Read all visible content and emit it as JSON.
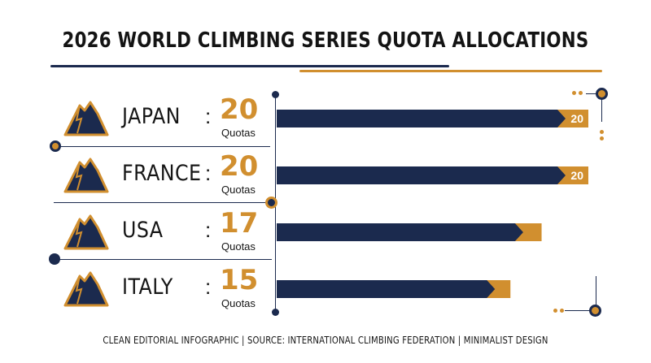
{
  "chart_data": {
    "type": "bar",
    "title": "2026 WORLD CLIMBING SERIES QUOTA ALLOCATIONS",
    "categories": [
      "JAPAN",
      "FRANCE",
      "USA",
      "ITALY"
    ],
    "values": [
      20,
      20,
      17,
      15
    ],
    "data_labels": [
      "20",
      "20",
      "",
      ""
    ],
    "unit_label": "Quotas",
    "xlim": [
      0,
      20
    ],
    "orientation": "horizontal",
    "colors": {
      "bar": "#1b2a4e",
      "accent": "#d18f2f"
    },
    "icon": "mountain-icon"
  },
  "footer": "CLEAN EDITORIAL INFOGRAPHIC | SOURCE: INTERNATIONAL CLIMBING FEDERATION | MINIMALIST DESIGN"
}
